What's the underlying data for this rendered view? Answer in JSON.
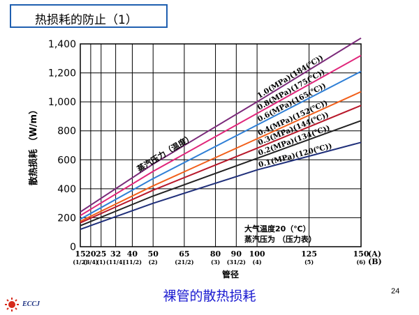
{
  "slide": {
    "title": "热损耗的防止（1）",
    "caption": "裸管的散热损耗",
    "page_number": "24",
    "logo_text": "ECCJ"
  },
  "chart_data": {
    "type": "line",
    "ylabel": "散热损耗 （W/m）",
    "xlabel": "管径",
    "ylim": [
      0,
      1400
    ],
    "y_ticks": [
      "0",
      "200",
      "400",
      "600",
      "800",
      "1,000",
      "1,200",
      "1,400"
    ],
    "grid": true,
    "x_ticks": [
      {
        "a": "15",
        "b": "(1/2)"
      },
      {
        "a": "20",
        "b": "(3/4)"
      },
      {
        "a": "25",
        "b": "(1)"
      },
      {
        "a": "32",
        "b": "(11/4)"
      },
      {
        "a": "40",
        "b": "(11/2)"
      },
      {
        "a": "50",
        "b": "(2)"
      },
      {
        "a": "65",
        "b": "(21/2)"
      },
      {
        "a": "80",
        "b": "(3)"
      },
      {
        "a": "90",
        "b": "(31/2)"
      },
      {
        "a": "100",
        "b": "(4)"
      },
      {
        "a": "125",
        "b": "(5)"
      },
      {
        "a": "150",
        "b": "(6)"
      }
    ],
    "unit_labels": {
      "a": "(A)",
      "b": "(B)"
    },
    "x_range": [
      15,
      150
    ],
    "series_group_label": "蒸汽压力（温度）",
    "series": [
      {
        "name": "1.0(MPa)(184(℃))",
        "color": "#7b2a7a",
        "values": [
          [
            15,
            240
          ],
          [
            50,
            570
          ],
          [
            100,
            1000
          ],
          [
            150,
            1440
          ]
        ]
      },
      {
        "name": "0.8(MPa)(175(℃))",
        "color": "#e0257a",
        "values": [
          [
            15,
            215
          ],
          [
            50,
            520
          ],
          [
            100,
            920
          ],
          [
            150,
            1320
          ]
        ]
      },
      {
        "name": "0.6(MPa)(165(℃))",
        "color": "#2f7fd6",
        "values": [
          [
            15,
            190
          ],
          [
            50,
            470
          ],
          [
            100,
            840
          ],
          [
            150,
            1210
          ]
        ]
      },
      {
        "name": "0.4(MPa)(152(℃))",
        "color": "#f25f1a",
        "values": [
          [
            15,
            175
          ],
          [
            50,
            420
          ],
          [
            100,
            745
          ],
          [
            150,
            1070
          ]
        ]
      },
      {
        "name": "0.3(MPa)(144(℃))",
        "color": "#b8182a",
        "values": [
          [
            15,
            165
          ],
          [
            50,
            390
          ],
          [
            100,
            680
          ],
          [
            150,
            975
          ]
        ]
      },
      {
        "name": "0.2(MPa)(134(℃))",
        "color": "#222222",
        "values": [
          [
            15,
            145
          ],
          [
            50,
            350
          ],
          [
            100,
            610
          ],
          [
            150,
            870
          ]
        ]
      },
      {
        "name": "0.1(MPa)(120(℃))",
        "color": "#1f2f7a",
        "values": [
          [
            15,
            120
          ],
          [
            50,
            300
          ],
          [
            100,
            530
          ],
          [
            150,
            720
          ]
        ]
      }
    ],
    "notes": [
      "大气温度20（℃）",
      "蒸汽压为 （压力表）"
    ]
  }
}
